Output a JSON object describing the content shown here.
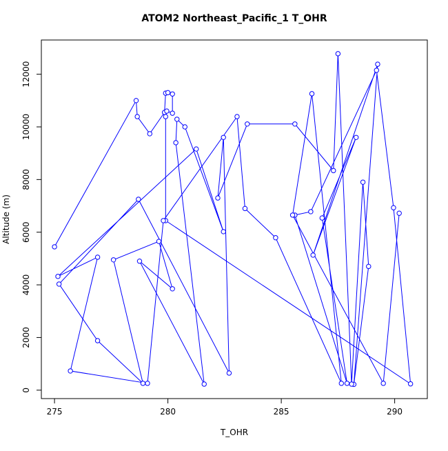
{
  "chart_data": {
    "type": "line",
    "title": "ATOM2 Northeast_Pacific_1 T_OHR",
    "x_label": "T_OHR",
    "y_label": "Altitude (m)",
    "x": [
      275.0,
      278.6,
      278.65,
      279.2,
      279.85,
      279.9,
      280.0,
      280.2,
      280.2,
      279.95,
      279.9,
      279.9,
      290.7,
      289.95,
      289.2,
      286.3,
      285.6,
      287.9,
      286.8,
      288.3,
      286.4,
      289.25,
      288.2,
      288.85,
      288.6,
      288.1,
      287.5,
      287.3,
      285.6,
      283.5,
      282.2,
      282.45,
      282.7,
      278.7,
      275.2,
      276.9,
      278.9,
      277.6,
      279.6,
      280.2,
      278.75,
      281.6,
      280.35,
      280.4,
      280.75,
      282.45,
      281.25,
      275.15,
      276.9,
      275.7,
      279.1,
      279.8,
      283.05,
      283.4,
      284.75,
      287.65,
      286.35,
      285.5,
      289.5,
      290.2
    ],
    "series": [
      {
        "name": "Altitude",
        "color": "#0000ff",
        "values": [
          5445,
          11000,
          10390,
          9740,
          10550,
          11280,
          11300,
          11250,
          10520,
          10600,
          10390,
          6440,
          240,
          6930,
          12150,
          6780,
          6650,
          260,
          6540,
          9600,
          5130,
          12380,
          220,
          4700,
          7900,
          230,
          12780,
          8340,
          10110,
          10110,
          7300,
          9600,
          650,
          7250,
          4030,
          1880,
          260,
          4950,
          5650,
          3850,
          4900,
          230,
          9400,
          10290,
          10000,
          6020,
          9160,
          4320,
          5050,
          730,
          260,
          6440,
          10390,
          6900,
          5790,
          260,
          11260,
          6650,
          260,
          6720
        ]
      }
    ],
    "xlim": [
      274.42,
      291.44
    ],
    "ylim": [
      -320,
      13300
    ],
    "xticks": [
      275,
      280,
      285,
      290
    ],
    "yticks": [
      0,
      2000,
      4000,
      6000,
      8000,
      10000,
      12000
    ]
  }
}
